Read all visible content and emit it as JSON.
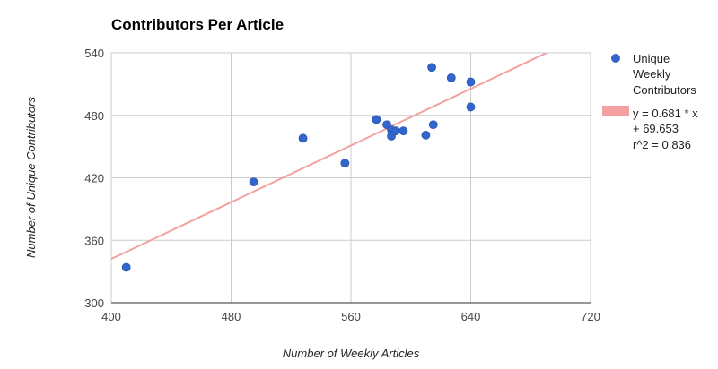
{
  "chart_data": {
    "type": "scatter",
    "title": "Contributors Per Article",
    "xlabel": "Number of Weekly Articles",
    "ylabel": "Number of Unique Contributors",
    "xlim": [
      400,
      720
    ],
    "ylim": [
      300,
      540
    ],
    "xticks": [
      "400",
      "480",
      "560",
      "640",
      "720"
    ],
    "yticks": [
      "300",
      "360",
      "420",
      "480",
      "540"
    ],
    "grid": true,
    "legend_position": "right",
    "series": [
      {
        "name": "Unique Weekly Contributors",
        "legend_lines": [
          "Unique",
          "Weekly",
          "Contributors"
        ],
        "color": "#3366cc",
        "points": [
          {
            "x": 410,
            "y": 334
          },
          {
            "x": 495,
            "y": 416
          },
          {
            "x": 528,
            "y": 458
          },
          {
            "x": 556,
            "y": 434
          },
          {
            "x": 577,
            "y": 476
          },
          {
            "x": 584,
            "y": 471
          },
          {
            "x": 587,
            "y": 466
          },
          {
            "x": 587,
            "y": 460
          },
          {
            "x": 590,
            "y": 465
          },
          {
            "x": 595,
            "y": 465
          },
          {
            "x": 610,
            "y": 461
          },
          {
            "x": 614,
            "y": 526
          },
          {
            "x": 615,
            "y": 471
          },
          {
            "x": 627,
            "y": 516
          },
          {
            "x": 640,
            "y": 512
          },
          {
            "x": 640,
            "y": 488
          }
        ]
      }
    ],
    "trendline": {
      "slope": 0.681,
      "intercept": 69.653,
      "color": "#f4a0a0",
      "legend_lines": [
        "y = 0.681 * x",
        "+ 69.653",
        "r^2 = 0.836"
      ]
    }
  }
}
